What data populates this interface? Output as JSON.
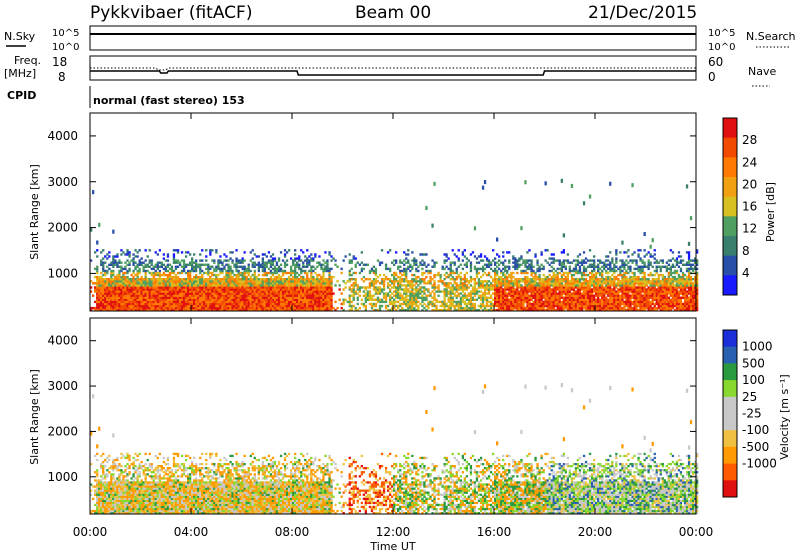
{
  "header": {
    "title": "Pykkvibaer (fitACF)",
    "beam": "Beam 00",
    "date": "21/Dec/2015"
  },
  "strips": {
    "nsky_label": "N.Sky",
    "nsearch_label": "N.Search",
    "nsky_ticks": [
      "10^5",
      "10^0"
    ],
    "nsearch_ticks": [
      "10^5",
      "10^0"
    ],
    "freq_label_1": "Freq.",
    "freq_label_2": "[MHz]",
    "freq_ticks": [
      "18",
      "8"
    ],
    "nave_label": "Nave",
    "nave_ticks": [
      "60",
      "0"
    ],
    "cpid_label": "CPID",
    "mode_text": "normal (fast stereo) 153"
  },
  "colors": {
    "power_scale": [
      "#1a1aff",
      "#2a4fa8",
      "#3a7f6e",
      "#4fa060",
      "#d8c020",
      "#f0a010",
      "#ff7a00",
      "#f24a00",
      "#e01010"
    ],
    "velocity_scale": [
      "#e01010",
      "#ff5a00",
      "#ff9a00",
      "#f0c040",
      "#c8c8c8",
      "#c8c8c8",
      "#88d830",
      "#2a9a40",
      "#2a60b0",
      "#1a2fd8"
    ]
  },
  "chart_data": [
    {
      "type": "heatmap",
      "panel": "power",
      "ylabel": "Slant Range [km]",
      "y_ticks": [
        "4000",
        "3000",
        "2000",
        "1000"
      ],
      "ylim": [
        180,
        4500
      ],
      "xlim": [
        "00:00",
        "24:00"
      ],
      "colorbar_label": "Power [dB]",
      "colorbar_ticks": [
        "28",
        "24",
        "20",
        "16",
        "12",
        "8",
        "4"
      ],
      "colorbar_range": [
        0,
        32
      ]
    },
    {
      "type": "heatmap",
      "panel": "velocity",
      "ylabel": "Slant Range [km]",
      "y_ticks": [
        "4000",
        "3000",
        "2000",
        "1000"
      ],
      "ylim": [
        180,
        4500
      ],
      "xlim": [
        "00:00",
        "24:00"
      ],
      "colorbar_label": "Velocity [m s⁻¹]",
      "colorbar_ticks": [
        "1000",
        "500",
        "100",
        "25",
        "-25",
        "-100",
        "-500",
        "-1000"
      ]
    }
  ],
  "x_axis": {
    "label": "Time UT",
    "ticks": [
      "00:00",
      "04:00",
      "08:00",
      "12:00",
      "16:00",
      "20:00",
      "00:00"
    ]
  }
}
